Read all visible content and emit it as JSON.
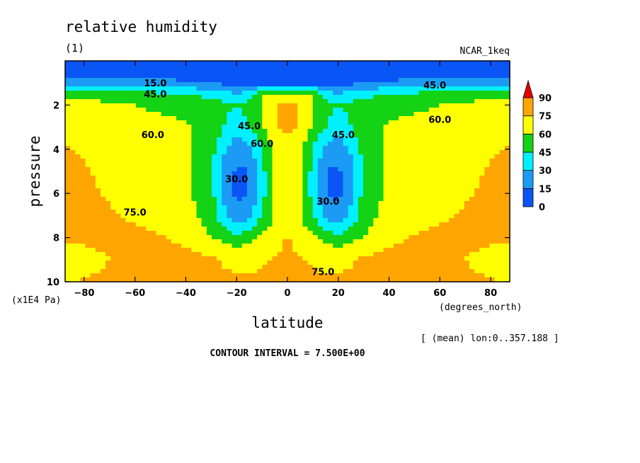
{
  "chart_data": {
    "type": "heatmap",
    "title": "relative humidity",
    "subtitle": "(1)",
    "dataset": "NCAR_1keq",
    "xlabel": "latitude",
    "xunits": "(degrees_north)",
    "ylabel": "pressure",
    "yunits": "(x1E4 Pa)",
    "xlim": [
      -87.5,
      87.5
    ],
    "ylim": [
      10,
      0
    ],
    "xticks": [
      -80,
      -60,
      -40,
      -20,
      0,
      20,
      40,
      60,
      80
    ],
    "yticks": [
      2,
      4,
      6,
      8,
      10
    ],
    "colorbar": {
      "levels": [
        0,
        15,
        30,
        45,
        60,
        75,
        90
      ],
      "colors": [
        "#0a55f5",
        "#1c9bf5",
        "#00f0ff",
        "#14d214",
        "#ffff00",
        "#ffa500",
        "#e60000"
      ]
    },
    "contour_labels": [
      "15.0",
      "30.0",
      "45.0",
      "60.0",
      "75.0"
    ],
    "contour_interval_text": "CONTOUR INTERVAL = 7.500E+00",
    "mean_note": "[ (mean) lon:0..357.188 ]",
    "latitude": [
      -87.5,
      -80,
      -70,
      -60,
      -50,
      -40,
      -30,
      -25,
      -20,
      -15,
      -10,
      -5,
      0,
      5,
      10,
      15,
      20,
      25,
      30,
      40,
      50,
      60,
      70,
      80,
      87.5
    ],
    "pressure": [
      0.5,
      1,
      1.5,
      2,
      3,
      4,
      5,
      6,
      7,
      8,
      9,
      10
    ],
    "values": [
      [
        5,
        5,
        5,
        5,
        5,
        5,
        5,
        5,
        5,
        5,
        5,
        5,
        5,
        5,
        5,
        5,
        5,
        5,
        5,
        5,
        5,
        5,
        5,
        5,
        5
      ],
      [
        25,
        25,
        25,
        22,
        20,
        18,
        15,
        12,
        10,
        8,
        8,
        8,
        8,
        8,
        8,
        8,
        10,
        12,
        15,
        18,
        20,
        22,
        25,
        25,
        25
      ],
      [
        55,
        55,
        52,
        50,
        48,
        45,
        40,
        35,
        30,
        40,
        60,
        65,
        65,
        65,
        60,
        40,
        30,
        35,
        40,
        45,
        48,
        50,
        52,
        55,
        55
      ],
      [
        65,
        65,
        63,
        60,
        58,
        55,
        52,
        48,
        45,
        50,
        62,
        75,
        78,
        75,
        62,
        50,
        45,
        48,
        52,
        55,
        58,
        60,
        63,
        65,
        65
      ],
      [
        72,
        70,
        68,
        65,
        63,
        62,
        55,
        45,
        38,
        45,
        58,
        72,
        80,
        72,
        58,
        45,
        38,
        45,
        55,
        62,
        63,
        65,
        68,
        70,
        72
      ],
      [
        76,
        74,
        70,
        67,
        65,
        62,
        50,
        32,
        20,
        25,
        45,
        62,
        65,
        62,
        45,
        25,
        20,
        32,
        50,
        62,
        65,
        67,
        70,
        74,
        76
      ],
      [
        77,
        76,
        72,
        68,
        66,
        62,
        48,
        25,
        12,
        15,
        40,
        62,
        68,
        62,
        40,
        15,
        12,
        25,
        48,
        62,
        66,
        68,
        72,
        76,
        77
      ],
      [
        78,
        77,
        74,
        70,
        67,
        63,
        50,
        25,
        12,
        15,
        40,
        60,
        65,
        60,
        40,
        15,
        12,
        25,
        50,
        63,
        67,
        70,
        74,
        77,
        78
      ],
      [
        79,
        78,
        76,
        73,
        70,
        66,
        52,
        35,
        20,
        25,
        45,
        60,
        65,
        60,
        45,
        25,
        20,
        35,
        52,
        66,
        70,
        73,
        76,
        78,
        79
      ],
      [
        77,
        78,
        79,
        78,
        76,
        72,
        60,
        55,
        50,
        55,
        62,
        70,
        76,
        70,
        62,
        55,
        50,
        55,
        60,
        72,
        76,
        78,
        79,
        78,
        77
      ],
      [
        68,
        70,
        75,
        78,
        79,
        79,
        78,
        74,
        72,
        72,
        74,
        76,
        78,
        76,
        74,
        72,
        72,
        74,
        78,
        79,
        79,
        78,
        75,
        70,
        68
      ],
      [
        72,
        76,
        78,
        78,
        78,
        78,
        78,
        77,
        77,
        77,
        77,
        77,
        77,
        77,
        77,
        77,
        77,
        77,
        78,
        78,
        78,
        78,
        78,
        76,
        72
      ]
    ]
  }
}
